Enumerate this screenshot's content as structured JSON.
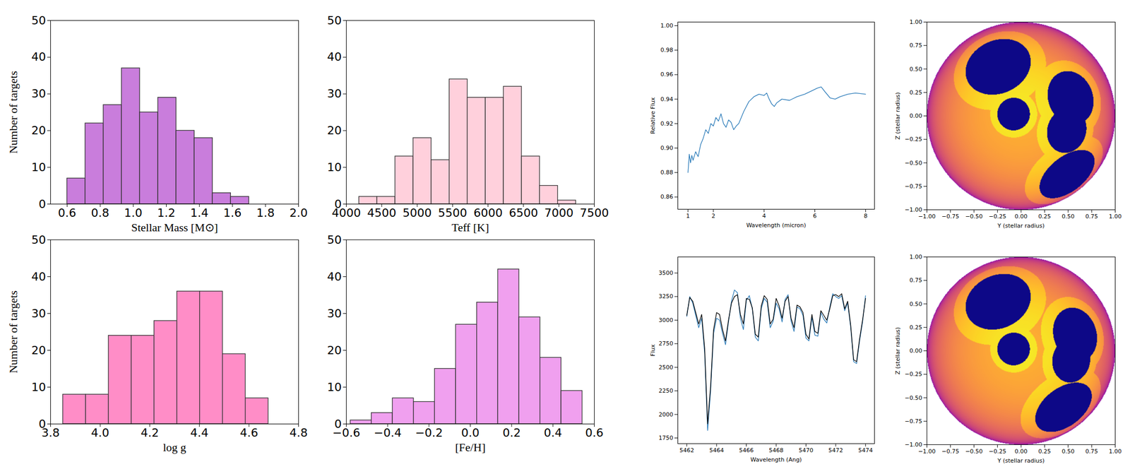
{
  "chart_data": [
    {
      "type": "histogram",
      "xlabel": "Stellar Mass [M⊙]",
      "ylabel": "Number of targets",
      "color": "#c97ddc",
      "bins": [
        0.6,
        0.71,
        0.82,
        0.93,
        1.04,
        1.15,
        1.26,
        1.37,
        1.48,
        1.59,
        1.7
      ],
      "counts": [
        7,
        22,
        27,
        37,
        25,
        29,
        20,
        18,
        3,
        2
      ],
      "xlim": [
        0.5,
        2.0
      ],
      "xticks": [
        0.6,
        0.8,
        {
          "value": 1,
          "label": "1.0"
        },
        1.2,
        1.4,
        1.6,
        1.8,
        {
          "value": 2,
          "label": "2.0"
        }
      ],
      "ylim": [
        0,
        50
      ],
      "yticks": [
        0,
        10,
        20,
        30,
        40,
        50
      ]
    },
    {
      "type": "histogram",
      "xlabel": "Teff [K]",
      "color": "#ffd0dc",
      "bins": [
        4180,
        4435,
        4690,
        4945,
        5200,
        5455,
        5710,
        5965,
        6220,
        6475,
        6730,
        6985,
        7240
      ],
      "counts": [
        2,
        2,
        13,
        18,
        12,
        34,
        29,
        29,
        32,
        13,
        5,
        1
      ],
      "xlim": [
        4000,
        7500
      ],
      "xticks": [
        4000,
        4500,
        5000,
        5500,
        6000,
        6500,
        7000,
        7500
      ],
      "ylim": [
        0,
        50
      ],
      "yticks": [
        0,
        10,
        20,
        30,
        40,
        50
      ]
    },
    {
      "type": "histogram",
      "xlabel": "log g",
      "ylabel": "Number of targets",
      "color": "#ff8dc7",
      "bins": [
        3.85,
        3.942,
        4.034,
        4.126,
        4.218,
        4.31,
        4.402,
        4.494,
        4.586,
        4.678
      ],
      "counts": [
        8,
        8,
        24,
        24,
        28,
        36,
        36,
        19,
        7
      ],
      "xlim": [
        3.8,
        4.8
      ],
      "xticks": [
        3.8,
        {
          "value": 4,
          "label": "4.0"
        },
        4.2,
        4.4,
        4.6,
        4.8
      ],
      "ylim": [
        0,
        50
      ],
      "yticks": [
        0,
        10,
        20,
        30,
        40,
        50
      ]
    },
    {
      "type": "histogram",
      "xlabel": "[Fe/H]",
      "color": "#f0a0ef",
      "bins": [
        -0.58,
        -0.478,
        -0.376,
        -0.274,
        -0.172,
        -0.07,
        0.032,
        0.134,
        0.236,
        0.338,
        0.44,
        0.542
      ],
      "counts": [
        1,
        3,
        7,
        6,
        15,
        27,
        33,
        42,
        29,
        18,
        9
      ],
      "xlim": [
        -0.6,
        0.6
      ],
      "xticks": [
        {
          "value": -0.6,
          "label": "−0.6"
        },
        {
          "value": -0.4,
          "label": "−0.4"
        },
        {
          "value": -0.2,
          "label": "−0.2"
        },
        {
          "value": 0,
          "label": "0.0"
        },
        0.2,
        0.4,
        0.6
      ],
      "ylim": [
        0,
        50
      ],
      "yticks": [
        0,
        10,
        20,
        30,
        40,
        50
      ]
    },
    {
      "type": "line",
      "xlabel": "Wavelength (micron)",
      "ylabel": "Relative Flux",
      "x": [
        1.0,
        1.05,
        1.1,
        1.15,
        1.2,
        1.3,
        1.4,
        1.5,
        1.6,
        1.7,
        1.8,
        1.9,
        2.0,
        2.1,
        2.2,
        2.3,
        2.4,
        2.5,
        2.6,
        2.7,
        2.8,
        2.9,
        3.0,
        3.2,
        3.4,
        3.6,
        3.8,
        4.0,
        4.1,
        4.2,
        4.3,
        4.4,
        4.5,
        4.7,
        5.0,
        5.3,
        5.6,
        5.9,
        6.1,
        6.25,
        6.4,
        6.6,
        6.8,
        7.0,
        7.3,
        7.6,
        8.0
      ],
      "series": [
        {
          "color": "#2b7bb9",
          "values": [
            0.88,
            0.895,
            0.888,
            0.894,
            0.89,
            0.897,
            0.893,
            0.903,
            0.908,
            0.915,
            0.912,
            0.92,
            0.918,
            0.925,
            0.922,
            0.928,
            0.92,
            0.917,
            0.923,
            0.921,
            0.915,
            0.918,
            0.92,
            0.93,
            0.938,
            0.942,
            0.944,
            0.943,
            0.945,
            0.94,
            0.936,
            0.934,
            0.937,
            0.94,
            0.939,
            0.942,
            0.944,
            0.947,
            0.949,
            0.95,
            0.946,
            0.941,
            0.94,
            0.942,
            0.944,
            0.945,
            0.944
          ]
        }
      ],
      "xlim": [
        0.6,
        8.35
      ],
      "xticks": [
        1,
        2,
        4,
        6,
        8
      ],
      "ylim": [
        0.85,
        1.003
      ],
      "yticks": [
        0.86,
        0.88,
        {
          "value": 0.9,
          "label": "0.90"
        },
        0.92,
        0.94,
        0.96,
        0.98,
        {
          "value": 1,
          "label": "1.00"
        }
      ]
    },
    {
      "type": "raster",
      "xlabel": "Y (stellar radius)",
      "ylabel": "Z (stellar radius)",
      "spots": [
        {
          "y": -0.26,
          "z": 0.56,
          "radius_deg": 21
        },
        {
          "y": -0.08,
          "z": 0.02,
          "radius_deg": 10
        },
        {
          "y": 0.55,
          "z": 0.2,
          "radius_deg": 17
        },
        {
          "y": 0.5,
          "z": -0.16,
          "radius_deg": 14
        },
        {
          "y": 0.52,
          "z": -0.66,
          "radius_deg": 20
        }
      ],
      "xlim": [
        -1,
        1
      ],
      "xticks": [
        {
          "value": -1,
          "label": "−1.00"
        },
        {
          "value": -0.75,
          "label": "−0.75"
        },
        {
          "value": -0.5,
          "label": "−0.50"
        },
        {
          "value": -0.25,
          "label": "−0.25"
        },
        {
          "value": 0,
          "label": "0.00"
        },
        0.25,
        {
          "value": 0.5,
          "label": "0.50"
        },
        0.75,
        {
          "value": 1,
          "label": "1.00"
        }
      ],
      "ylim": [
        -1,
        1
      ],
      "yticks": [
        {
          "value": -1,
          "label": "−1.00"
        },
        {
          "value": -0.75,
          "label": "−0.75"
        },
        {
          "value": -0.5,
          "label": "−0.50"
        },
        {
          "value": -0.25,
          "label": "−0.25"
        },
        {
          "value": 0,
          "label": "0.00"
        },
        0.25,
        {
          "value": 0.5,
          "label": "0.50"
        },
        0.75,
        {
          "value": 1,
          "label": "1.00"
        }
      ]
    },
    {
      "type": "line",
      "xlabel": "Wavelength (Ang)",
      "ylabel": "Flux",
      "x": [
        5462.0,
        5462.2,
        5462.4,
        5462.6,
        5462.8,
        5463.0,
        5463.2,
        5463.4,
        5463.6,
        5463.8,
        5464.0,
        5464.2,
        5464.4,
        5464.6,
        5464.8,
        5465.0,
        5465.2,
        5465.4,
        5465.6,
        5465.8,
        5466.0,
        5466.2,
        5466.4,
        5466.6,
        5466.8,
        5467.0,
        5467.2,
        5467.4,
        5467.6,
        5467.8,
        5468.0,
        5468.2,
        5468.4,
        5468.6,
        5468.8,
        5469.0,
        5469.2,
        5469.4,
        5469.6,
        5469.8,
        5470.0,
        5470.2,
        5470.4,
        5470.6,
        5470.8,
        5471.0,
        5471.2,
        5471.4,
        5471.6,
        5471.8,
        5472.0,
        5472.2,
        5472.4,
        5472.6,
        5472.8,
        5473.0,
        5473.2,
        5473.4,
        5473.6,
        5473.8,
        5474.0
      ],
      "series": [
        {
          "color": "#2b7bb9",
          "values": [
            3040,
            3250,
            3180,
            3050,
            2920,
            3020,
            2650,
            1830,
            2250,
            2860,
            3020,
            3000,
            2860,
            2740,
            2980,
            3200,
            3320,
            3290,
            3020,
            2900,
            3210,
            3260,
            3120,
            2820,
            2780,
            3120,
            3230,
            3190,
            2920,
            2990,
            3180,
            3120,
            2980,
            3220,
            3270,
            2990,
            2880,
            3140,
            3120,
            3050,
            2810,
            2780,
            3030,
            2840,
            2830,
            3080,
            3010,
            2970,
            3140,
            3280,
            3250,
            3230,
            3260,
            3100,
            3180,
            2930,
            2560,
            2540,
            2780,
            2980,
            3260
          ]
        },
        {
          "color": "#000000",
          "values": [
            3050,
            3240,
            3200,
            3080,
            2960,
            3060,
            2700,
            1900,
            2300,
            2900,
            3080,
            3060,
            2900,
            2780,
            3000,
            3180,
            3250,
            3270,
            3060,
            2960,
            3230,
            3220,
            3130,
            2850,
            2820,
            3150,
            3260,
            3220,
            2960,
            3010,
            3230,
            3150,
            3020,
            3200,
            3250,
            3020,
            2920,
            3160,
            3140,
            3080,
            2850,
            2800,
            3060,
            2880,
            2860,
            3100,
            3050,
            3000,
            3120,
            3260,
            3270,
            3250,
            3280,
            3120,
            3200,
            2950,
            2580,
            2560,
            2800,
            3000,
            3230
          ]
        }
      ],
      "xlim": [
        5461.4,
        5474.6
      ],
      "xticks": [
        5462,
        5464,
        5466,
        5468,
        5470,
        5472,
        5474
      ],
      "ylim": [
        1690,
        3670
      ],
      "yticks": [
        1750,
        2000,
        2250,
        2500,
        2750,
        3000,
        3250,
        3500
      ]
    },
    {
      "type": "raster",
      "xlabel": "Y (stellar radius)",
      "ylabel": "Z (stellar radius)",
      "spots": [
        {
          "y": -0.26,
          "z": 0.56,
          "radius_deg": 21
        },
        {
          "y": -0.08,
          "z": 0.02,
          "radius_deg": 10
        },
        {
          "y": 0.6,
          "z": 0.18,
          "radius_deg": 17
        },
        {
          "y": 0.55,
          "z": -0.1,
          "radius_deg": 14
        },
        {
          "y": 0.48,
          "z": -0.64,
          "radius_deg": 20
        }
      ],
      "xlim": [
        -1,
        1
      ],
      "xticks": [
        {
          "value": -1,
          "label": "−1.00"
        },
        {
          "value": -0.75,
          "label": "−0.75"
        },
        {
          "value": -0.5,
          "label": "−0.50"
        },
        {
          "value": -0.25,
          "label": "−0.25"
        },
        {
          "value": 0,
          "label": "0.00"
        },
        0.25,
        {
          "value": 0.5,
          "label": "0.50"
        },
        0.75,
        {
          "value": 1,
          "label": "1.00"
        }
      ],
      "ylim": [
        -1,
        1
      ],
      "yticks": [
        {
          "value": -1,
          "label": "−1.00"
        },
        {
          "value": -0.75,
          "label": "−0.75"
        },
        {
          "value": -0.5,
          "label": "−0.50"
        },
        {
          "value": -0.25,
          "label": "−0.25"
        },
        {
          "value": 0,
          "label": "0.00"
        },
        0.25,
        {
          "value": 0.5,
          "label": "0.50"
        },
        0.75,
        {
          "value": 1,
          "label": "1.00"
        }
      ]
    }
  ]
}
